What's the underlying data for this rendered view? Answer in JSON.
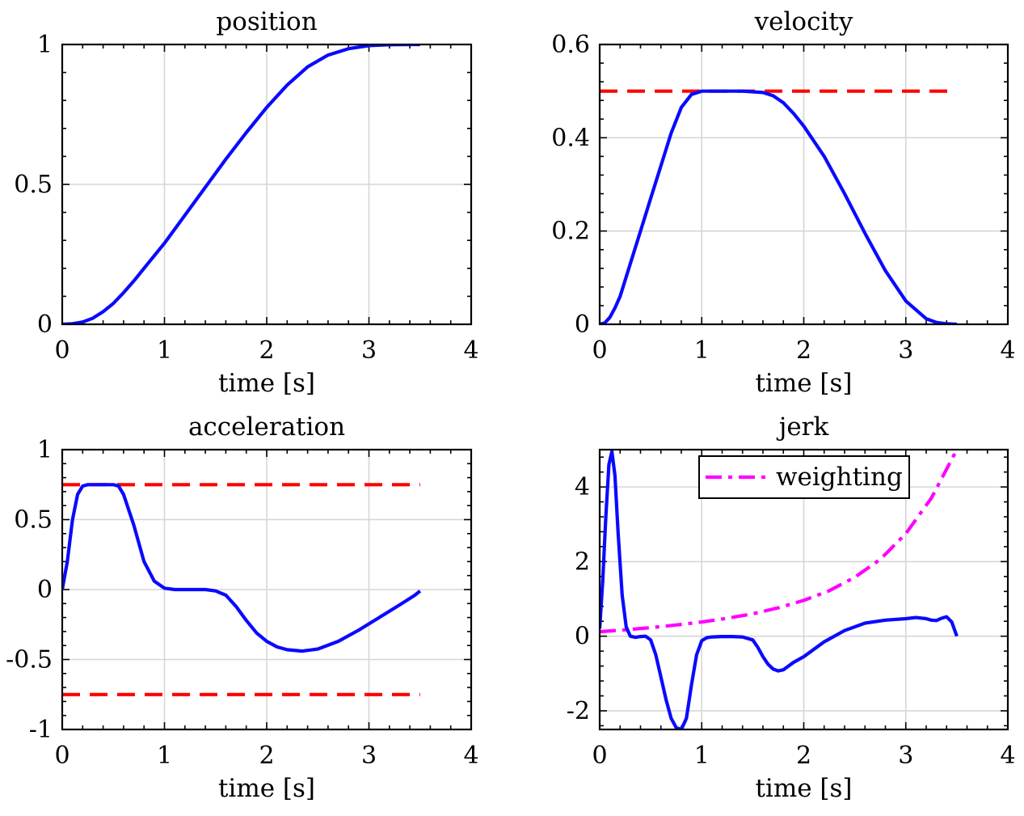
{
  "colors": {
    "data_line": "#0a0aff",
    "limit_line": "#ff0000",
    "weighting_line": "#ff00ff",
    "grid": "#d6d6d6",
    "frame": "#000000"
  },
  "chart_data": [
    {
      "id": "position",
      "type": "line",
      "title": "position",
      "xlabel": "time [s]",
      "ylabel": "",
      "xlim": [
        0,
        4
      ],
      "ylim": [
        0,
        1
      ],
      "xticks": [
        0,
        1,
        2,
        3,
        4
      ],
      "yticks": [
        0,
        0.5,
        1
      ],
      "xtick_labels": [
        "0",
        "1",
        "2",
        "3",
        "4"
      ],
      "ytick_labels": [
        "0",
        "0.5",
        "1"
      ],
      "grid": true,
      "legend": null,
      "series": [
        {
          "name": "position",
          "style": "solid",
          "color": "#0a0aff",
          "x": [
            0,
            0.1,
            0.2,
            0.3,
            0.4,
            0.5,
            0.6,
            0.7,
            0.8,
            0.9,
            1.0,
            1.2,
            1.4,
            1.6,
            1.8,
            2.0,
            2.2,
            2.4,
            2.6,
            2.8,
            3.0,
            3.2,
            3.4,
            3.5
          ],
          "y": [
            0,
            0.002,
            0.008,
            0.022,
            0.045,
            0.075,
            0.113,
            0.155,
            0.2,
            0.245,
            0.29,
            0.39,
            0.49,
            0.59,
            0.685,
            0.775,
            0.855,
            0.92,
            0.962,
            0.985,
            0.996,
            0.999,
            1.0,
            1.0
          ]
        }
      ]
    },
    {
      "id": "velocity",
      "type": "line",
      "title": "velocity",
      "xlabel": "time [s]",
      "ylabel": "",
      "xlim": [
        0,
        4
      ],
      "ylim": [
        0,
        0.6
      ],
      "xticks": [
        0,
        1,
        2,
        3,
        4
      ],
      "yticks": [
        0,
        0.2,
        0.4,
        0.6
      ],
      "xtick_labels": [
        "0",
        "1",
        "2",
        "3",
        "4"
      ],
      "ytick_labels": [
        "0",
        "0.2",
        "0.4",
        "0.6"
      ],
      "grid": true,
      "legend": null,
      "series": [
        {
          "name": "velocity limit",
          "style": "dashed",
          "color": "#ff0000",
          "x": [
            0,
            3.5
          ],
          "y": [
            0.5,
            0.5
          ]
        },
        {
          "name": "velocity",
          "style": "solid",
          "color": "#0a0aff",
          "x": [
            0,
            0.05,
            0.1,
            0.15,
            0.2,
            0.3,
            0.4,
            0.5,
            0.6,
            0.7,
            0.8,
            0.9,
            1.0,
            1.2,
            1.4,
            1.6,
            1.7,
            1.8,
            1.9,
            2.0,
            2.2,
            2.4,
            2.6,
            2.8,
            3.0,
            3.2,
            3.3,
            3.4,
            3.5
          ],
          "y": [
            0,
            0.003,
            0.015,
            0.035,
            0.06,
            0.13,
            0.2,
            0.27,
            0.34,
            0.41,
            0.465,
            0.493,
            0.5,
            0.5,
            0.5,
            0.497,
            0.49,
            0.475,
            0.452,
            0.425,
            0.36,
            0.28,
            0.195,
            0.115,
            0.05,
            0.012,
            0.004,
            0.001,
            0
          ]
        }
      ]
    },
    {
      "id": "acceleration",
      "type": "line",
      "title": "acceleration",
      "xlabel": "time [s]",
      "ylabel": "",
      "xlim": [
        0,
        4
      ],
      "ylim": [
        -1,
        1
      ],
      "xticks": [
        0,
        1,
        2,
        3,
        4
      ],
      "yticks": [
        -1,
        -0.5,
        0,
        0.5,
        1
      ],
      "xtick_labels": [
        "0",
        "1",
        "2",
        "3",
        "4"
      ],
      "ytick_labels": [
        "-1",
        "-0.5",
        "0",
        "0.5",
        "1"
      ],
      "grid": true,
      "legend": null,
      "series": [
        {
          "name": "upper acceleration limit",
          "style": "dashed",
          "color": "#ff0000",
          "x": [
            0,
            3.5
          ],
          "y": [
            0.75,
            0.75
          ]
        },
        {
          "name": "lower acceleration limit",
          "style": "dashed",
          "color": "#ff0000",
          "x": [
            0,
            3.5
          ],
          "y": [
            -0.75,
            -0.75
          ]
        },
        {
          "name": "acceleration",
          "style": "solid",
          "color": "#0a0aff",
          "x": [
            0,
            0.05,
            0.1,
            0.15,
            0.2,
            0.25,
            0.3,
            0.4,
            0.5,
            0.55,
            0.6,
            0.7,
            0.8,
            0.9,
            1.0,
            1.1,
            1.2,
            1.4,
            1.5,
            1.6,
            1.7,
            1.8,
            1.9,
            2.0,
            2.1,
            2.2,
            2.35,
            2.5,
            2.7,
            2.9,
            3.1,
            3.3,
            3.45,
            3.5
          ],
          "y": [
            0,
            0.2,
            0.5,
            0.68,
            0.74,
            0.75,
            0.75,
            0.75,
            0.75,
            0.74,
            0.68,
            0.46,
            0.2,
            0.06,
            0.01,
            0.0,
            0.0,
            0.0,
            -0.01,
            -0.04,
            -0.12,
            -0.22,
            -0.31,
            -0.37,
            -0.41,
            -0.43,
            -0.44,
            -0.425,
            -0.37,
            -0.29,
            -0.2,
            -0.11,
            -0.04,
            -0.01
          ]
        }
      ]
    },
    {
      "id": "jerk",
      "type": "line",
      "title": "jerk",
      "xlabel": "time [s]",
      "ylabel": "",
      "xlim": [
        0,
        4
      ],
      "ylim": [
        -2.5,
        5
      ],
      "xticks": [
        0,
        1,
        2,
        3,
        4
      ],
      "yticks": [
        -2,
        0,
        2,
        4
      ],
      "xtick_labels": [
        "0",
        "1",
        "2",
        "3",
        "4"
      ],
      "ytick_labels": [
        "-2",
        "0",
        "2",
        "4"
      ],
      "grid": true,
      "legend": {
        "position": "top-right",
        "entries": [
          "weighting"
        ]
      },
      "series": [
        {
          "name": "weighting",
          "style": "dashdot",
          "color": "#ff00ff",
          "x": [
            0,
            0.25,
            0.5,
            0.75,
            1.0,
            1.25,
            1.5,
            1.75,
            2.0,
            2.25,
            2.5,
            2.75,
            3.0,
            3.25,
            3.5
          ],
          "y": [
            0.12,
            0.17,
            0.23,
            0.3,
            0.38,
            0.48,
            0.6,
            0.76,
            0.96,
            1.22,
            1.58,
            2.06,
            2.75,
            3.7,
            5.0
          ]
        },
        {
          "name": "jerk",
          "style": "solid",
          "color": "#0a0aff",
          "x": [
            0,
            0.03,
            0.06,
            0.09,
            0.12,
            0.15,
            0.18,
            0.22,
            0.26,
            0.3,
            0.35,
            0.4,
            0.45,
            0.5,
            0.55,
            0.6,
            0.65,
            0.7,
            0.75,
            0.8,
            0.85,
            0.9,
            0.95,
            1.0,
            1.05,
            1.1,
            1.2,
            1.3,
            1.4,
            1.5,
            1.55,
            1.6,
            1.65,
            1.7,
            1.75,
            1.8,
            1.9,
            2.0,
            2.2,
            2.4,
            2.6,
            2.8,
            3.0,
            3.1,
            3.2,
            3.25,
            3.3,
            3.35,
            3.4,
            3.45,
            3.5
          ],
          "y": [
            0.2,
            1.5,
            3.2,
            4.6,
            4.95,
            4.3,
            2.8,
            1.1,
            0.25,
            0.0,
            -0.03,
            -0.01,
            0.0,
            -0.1,
            -0.5,
            -1.1,
            -1.7,
            -2.2,
            -2.45,
            -2.5,
            -2.2,
            -1.3,
            -0.5,
            -0.12,
            -0.04,
            -0.02,
            -0.01,
            -0.01,
            -0.02,
            -0.1,
            -0.3,
            -0.55,
            -0.75,
            -0.88,
            -0.93,
            -0.9,
            -0.7,
            -0.55,
            -0.15,
            0.15,
            0.35,
            0.43,
            0.47,
            0.5,
            0.47,
            0.43,
            0.42,
            0.48,
            0.52,
            0.38,
            0.0
          ]
        }
      ]
    }
  ]
}
